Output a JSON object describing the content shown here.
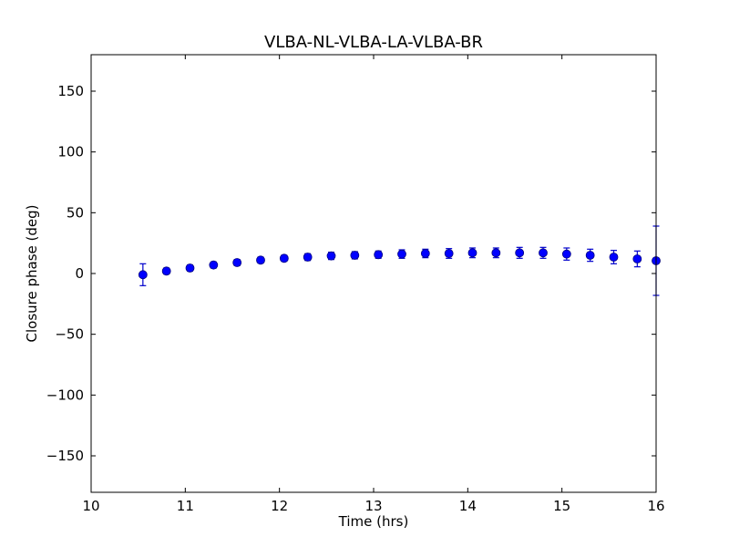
{
  "chart_data": {
    "type": "scatter",
    "title": "VLBA-NL-VLBA-LA-VLBA-BR",
    "xlabel": "Time (hrs)",
    "ylabel": "Closure phase (deg)",
    "xlim": [
      10,
      16
    ],
    "ylim": [
      -180,
      180
    ],
    "xticks": [
      10,
      11,
      12,
      13,
      14,
      15,
      16
    ],
    "xtick_labels": [
      "10",
      "11",
      "12",
      "13",
      "14",
      "15",
      "16"
    ],
    "yticks": [
      -150,
      -100,
      -50,
      0,
      50,
      100,
      150
    ],
    "ytick_labels": [
      "−150",
      "−100",
      "−50",
      "0",
      "50",
      "100",
      "150"
    ],
    "grid": false,
    "marker_color": "#0000ff",
    "errorbar_color": "#0000cc",
    "points": [
      {
        "x": 10.55,
        "y": -1,
        "err": 9
      },
      {
        "x": 10.8,
        "y": 2,
        "err": 2.5
      },
      {
        "x": 11.05,
        "y": 4.5,
        "err": 2.5
      },
      {
        "x": 11.3,
        "y": 7,
        "err": 2.5
      },
      {
        "x": 11.55,
        "y": 9,
        "err": 2.5
      },
      {
        "x": 11.8,
        "y": 11,
        "err": 2.5
      },
      {
        "x": 12.05,
        "y": 12.5,
        "err": 2.5
      },
      {
        "x": 12.3,
        "y": 13.5,
        "err": 2.8
      },
      {
        "x": 12.55,
        "y": 14.5,
        "err": 3
      },
      {
        "x": 12.8,
        "y": 15,
        "err": 3
      },
      {
        "x": 13.05,
        "y": 15.5,
        "err": 3
      },
      {
        "x": 13.3,
        "y": 16,
        "err": 3.5
      },
      {
        "x": 13.55,
        "y": 16.5,
        "err": 3.5
      },
      {
        "x": 13.8,
        "y": 16.5,
        "err": 4
      },
      {
        "x": 14.05,
        "y": 17,
        "err": 4
      },
      {
        "x": 14.3,
        "y": 17,
        "err": 4
      },
      {
        "x": 14.55,
        "y": 17,
        "err": 4.5
      },
      {
        "x": 14.8,
        "y": 17,
        "err": 4.5
      },
      {
        "x": 15.05,
        "y": 16,
        "err": 5
      },
      {
        "x": 15.3,
        "y": 15,
        "err": 5
      },
      {
        "x": 15.55,
        "y": 13.5,
        "err": 5.5
      },
      {
        "x": 15.8,
        "y": 12,
        "err": 6.5
      },
      {
        "x": 16.0,
        "y": 10.5,
        "err": 28.5
      }
    ]
  }
}
